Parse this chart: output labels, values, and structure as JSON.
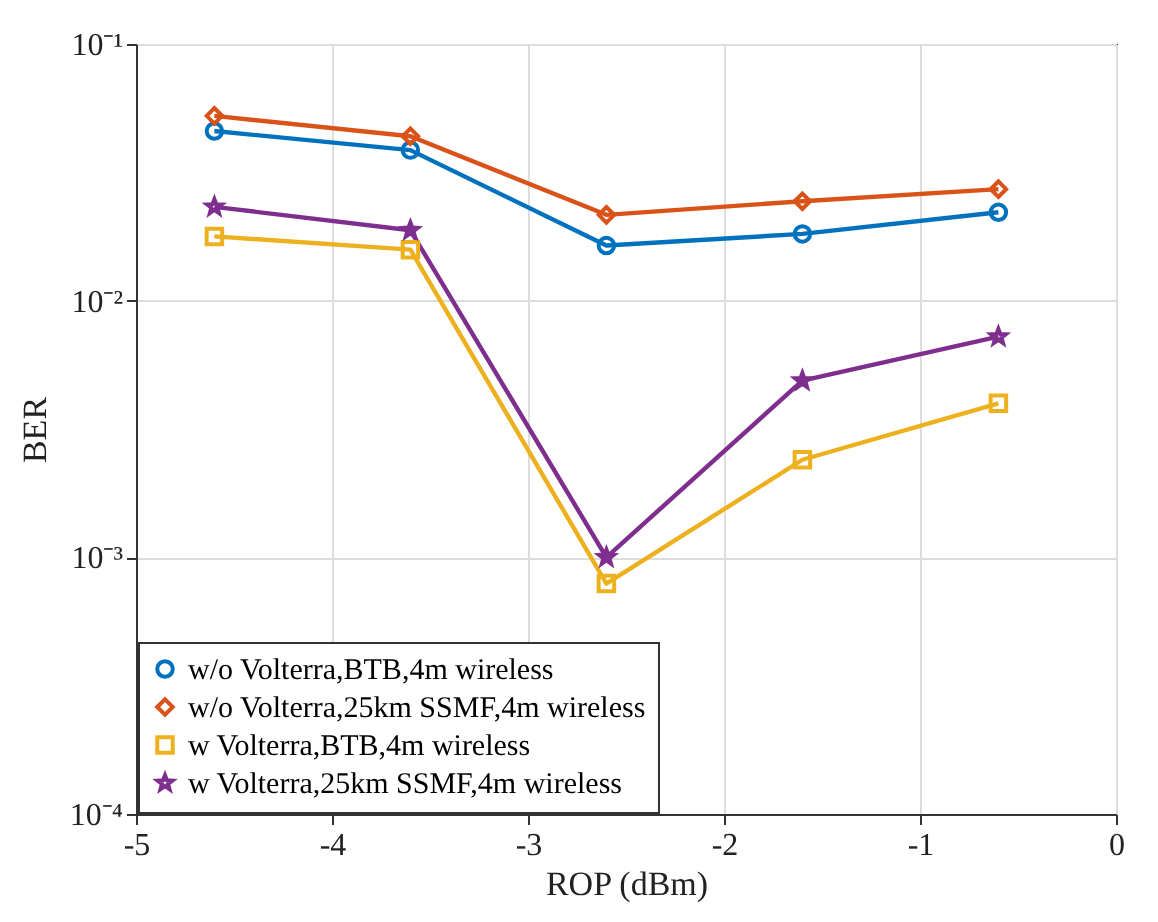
{
  "chart_data": {
    "type": "line",
    "xlabel": "ROP (dBm)",
    "ylabel": "BER",
    "log": "y",
    "x": [
      -4.6,
      -3.6,
      -2.6,
      -1.6,
      -0.6
    ],
    "xlim": [
      -5,
      0
    ],
    "xticks": [
      -5,
      -4,
      -3,
      -2,
      -1,
      0
    ],
    "ylim": [
      0.0001,
      0.1
    ],
    "yticks": [
      {
        "value": 0.1,
        "label": "10⁻¹"
      },
      {
        "value": 0.01,
        "label": "10⁻²"
      },
      {
        "value": 0.001,
        "label": "10⁻³"
      },
      {
        "value": 0.0001,
        "label": "10⁻⁴"
      }
    ],
    "grid": true,
    "legend": "bottom left",
    "line_style": "solid",
    "series": [
      {
        "name": "w/o Volterra,BTB,4m wireless",
        "color": "#0072bd",
        "marker": "circle",
        "values": [
          0.0458,
          0.0386,
          0.0164,
          0.0182,
          0.0221
        ]
      },
      {
        "name": "w/o Volterra,25km SSMF,4m wireless",
        "color": "#d95319",
        "marker": "diamond",
        "values": [
          0.0525,
          0.0437,
          0.0216,
          0.0244,
          0.0272
        ]
      },
      {
        "name": "w Volterra,BTB,4m wireless",
        "color": "#edb120",
        "marker": "square",
        "values": [
          0.0178,
          0.0158,
          0.00079,
          0.0024,
          0.00398
        ]
      },
      {
        "name": "w Volterra,25km SSMF,4m wireless",
        "color": "#7e2f8e",
        "marker": "star",
        "values": [
          0.0232,
          0.0188,
          0.001,
          0.00488,
          0.00724
        ]
      }
    ]
  }
}
